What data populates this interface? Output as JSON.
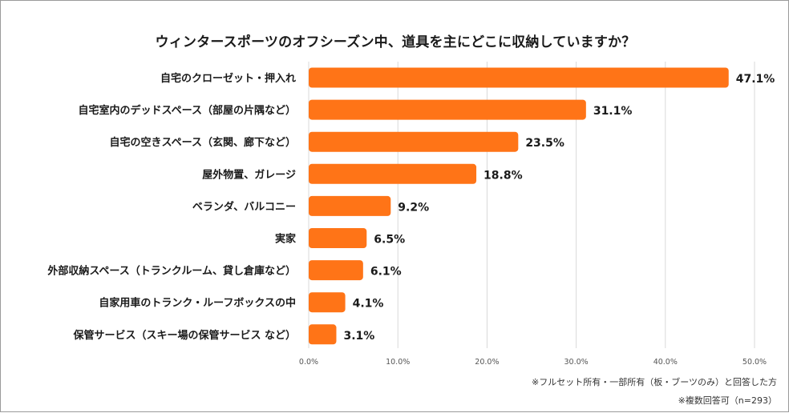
{
  "chart_data": {
    "type": "bar",
    "orientation": "horizontal",
    "title": "ウィンタースポーツのオフシーズン中、道具を主にどこに収納していますか？",
    "categories": [
      "自宅のクローゼット・押入れ",
      "自宅室内のデッドスペース（部屋の片隅など）",
      "自宅の空きスペース（玄関、廊下など）",
      "屋外物置、ガレージ",
      "ベランダ、バルコニー",
      "実家",
      "外部収納スペース（トランクルーム、貸し倉庫など）",
      "自家用車のトランク・ルーフボックスの中",
      "保管サービス（スキー場の保管サービス など）"
    ],
    "values": [
      47.1,
      31.1,
      23.5,
      18.8,
      9.2,
      6.5,
      6.1,
      4.1,
      3.1
    ],
    "value_labels": [
      "47.1%",
      "31.1%",
      "23.5%",
      "18.8%",
      "9.2%",
      "6.5%",
      "6.1%",
      "4.1%",
      "3.1%"
    ],
    "xticks": [
      0,
      10,
      20,
      30,
      40,
      50
    ],
    "xtick_labels": [
      "0.0%",
      "10.0%",
      "20.0%",
      "30.0%",
      "40.0%",
      "50.0%"
    ],
    "xlim": [
      0,
      50
    ],
    "xlabel": "",
    "ylabel": "",
    "grid": true,
    "bar_color": "#FF7417"
  },
  "footnotes": {
    "line1": "※フルセット所有・一部所有（板・ブーツのみ）と回答した方",
    "line2": "※複数回答可（n=293）"
  }
}
